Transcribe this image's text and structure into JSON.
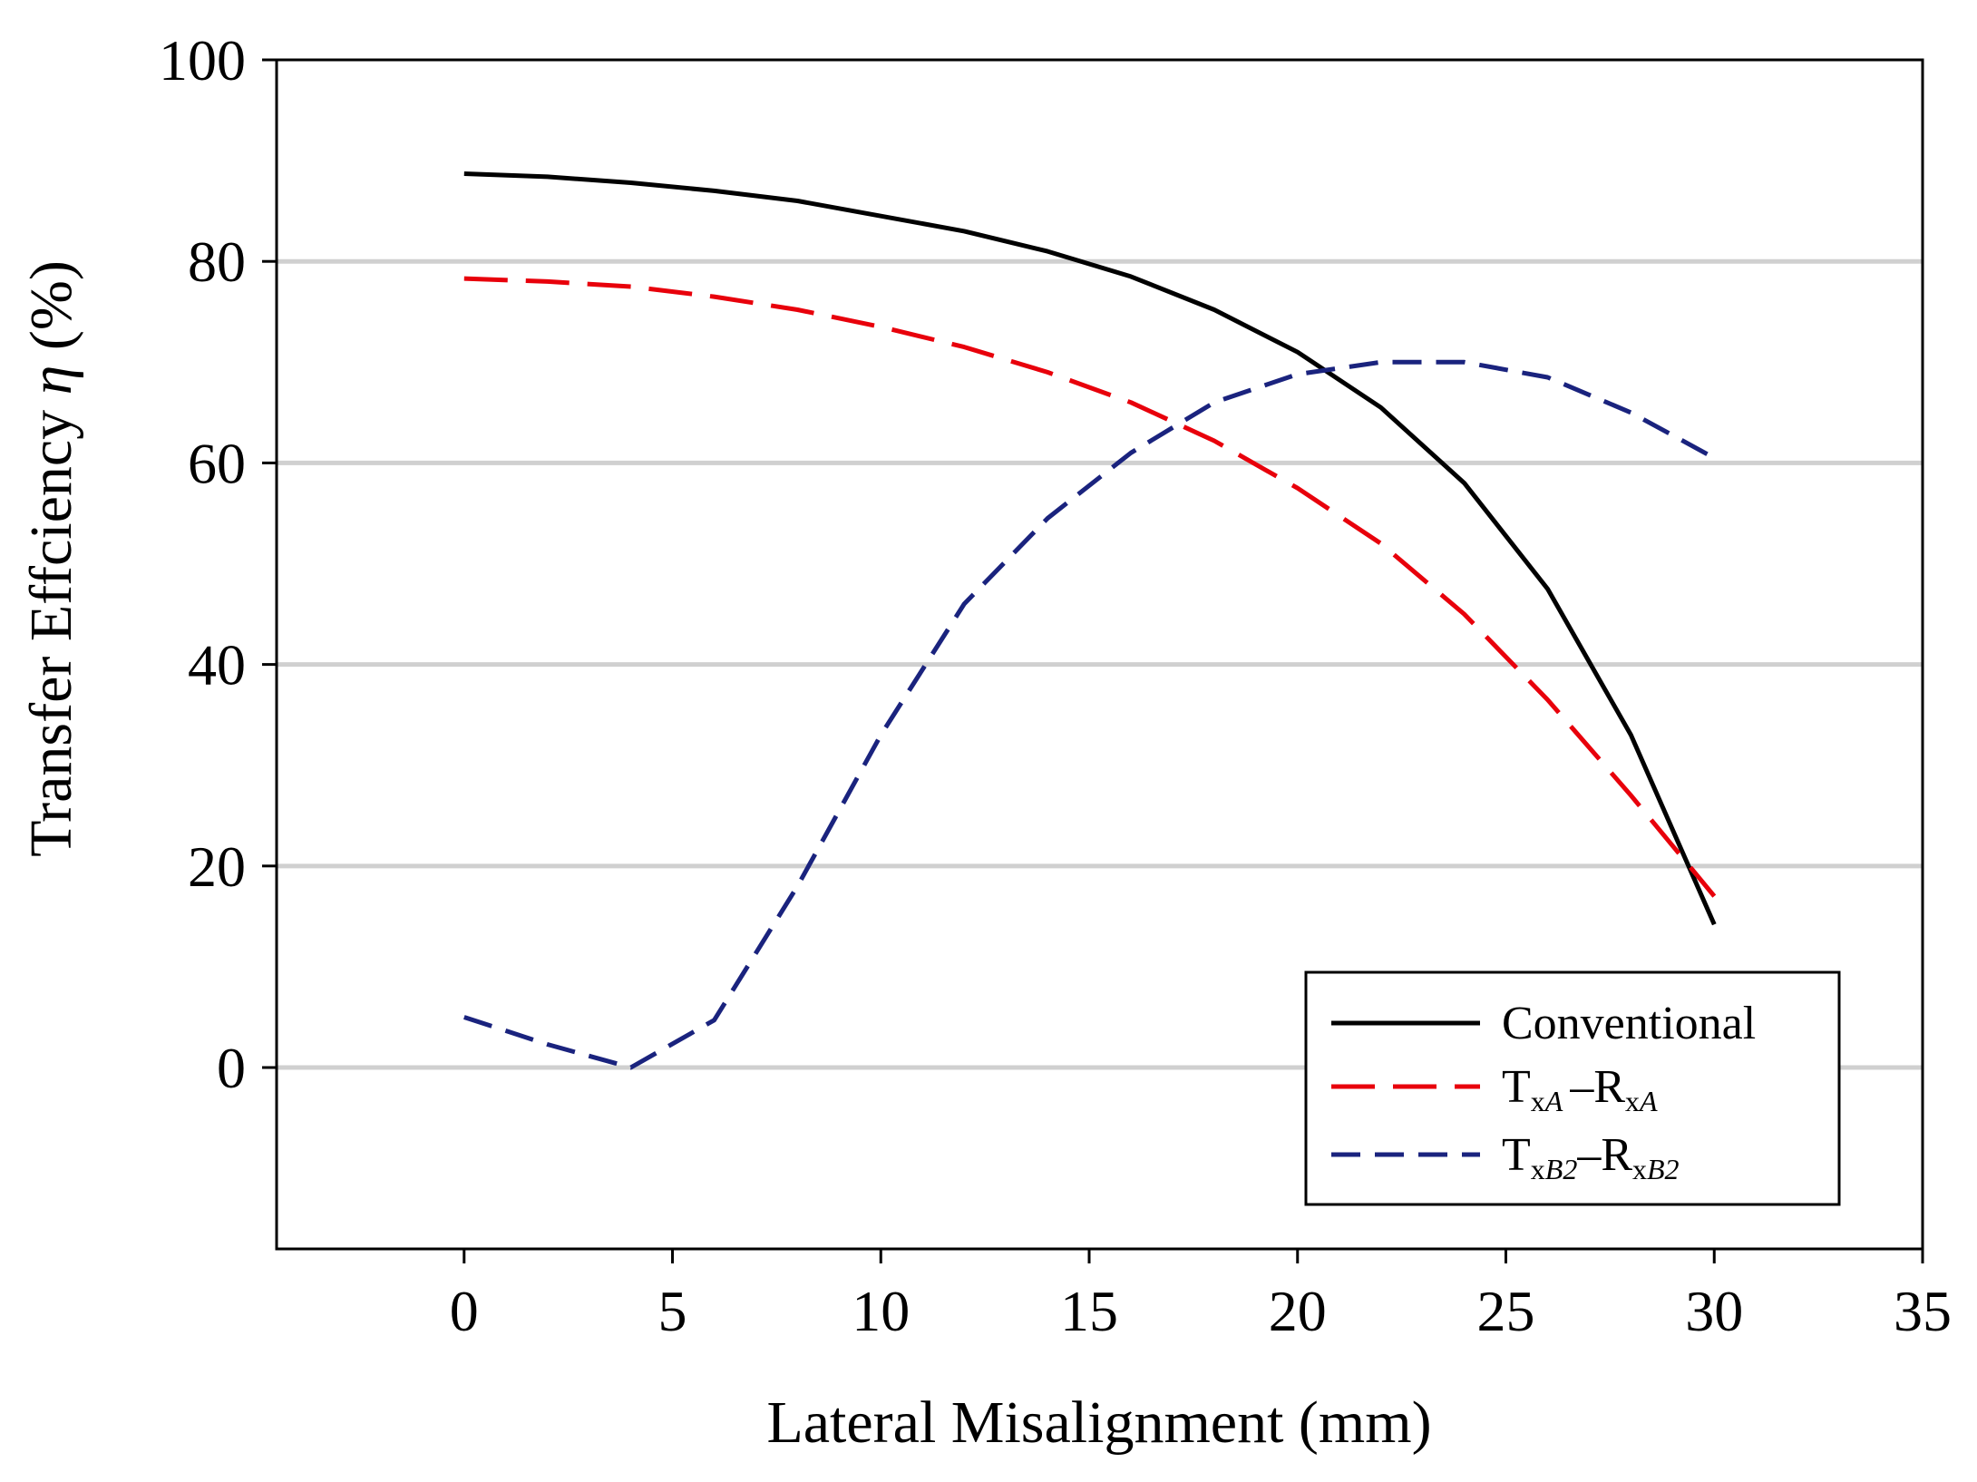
{
  "chart_data": {
    "type": "line",
    "xlabel": "Lateral Misalignment (mm)",
    "ylabel_prefix": "Transfer Effciency ",
    "ylabel_symbol": "η",
    "ylabel_suffix": " (%)",
    "xlim": [
      -4.5,
      35
    ],
    "ylim": [
      -18,
      100
    ],
    "xticks": [
      0,
      5,
      10,
      15,
      20,
      25,
      30,
      35
    ],
    "yticks": [
      0,
      20,
      40,
      60,
      80,
      100
    ],
    "ygrid": [
      0,
      20,
      40,
      60,
      80
    ],
    "legend_position": "bottom-right",
    "series": [
      {
        "name": "Conventional",
        "color": "#000000",
        "style": "solid",
        "x": [
          0,
          2,
          4,
          6,
          8,
          10,
          12,
          14,
          16,
          18,
          20,
          22,
          24,
          26,
          28,
          30
        ],
        "y": [
          88.7,
          88.4,
          87.8,
          87.0,
          86.0,
          84.5,
          83.0,
          81.0,
          78.5,
          75.2,
          71.0,
          65.5,
          58.0,
          47.5,
          33.0,
          14.2
        ]
      },
      {
        "name": "TxA–RxA",
        "legend": {
          "t": "T",
          "t_sub": "x",
          "t_sub_italic": "A",
          "dash": "–",
          "r": "R",
          "r_sub": "x",
          "r_sub_italic": "A"
        },
        "color": "#e8000b",
        "style": "dashed",
        "x": [
          0,
          2,
          4,
          6,
          8,
          10,
          12,
          14,
          16,
          18,
          20,
          22,
          24,
          26,
          28,
          30
        ],
        "y": [
          78.3,
          78.0,
          77.5,
          76.5,
          75.2,
          73.5,
          71.5,
          69.0,
          66.0,
          62.2,
          57.5,
          52.0,
          45.0,
          36.5,
          27.0,
          17.0
        ]
      },
      {
        "name": "TxB2–RxB2",
        "legend": {
          "t": "T",
          "t_sub": "x",
          "t_sub_italic": "B2",
          "dash": "–",
          "r": "R",
          "r_sub": "x",
          "r_sub_italic": "B2"
        },
        "color": "#1a237e",
        "style": "dashed",
        "x": [
          0,
          2,
          4,
          6,
          8,
          10,
          12,
          14,
          16,
          18,
          20,
          22,
          24,
          26,
          28,
          30
        ],
        "y": [
          5.0,
          2.3,
          0.0,
          4.7,
          18.0,
          33.0,
          46.0,
          54.5,
          61.0,
          66.0,
          68.8,
          70.0,
          70.0,
          68.5,
          65.0,
          60.5
        ]
      }
    ]
  }
}
